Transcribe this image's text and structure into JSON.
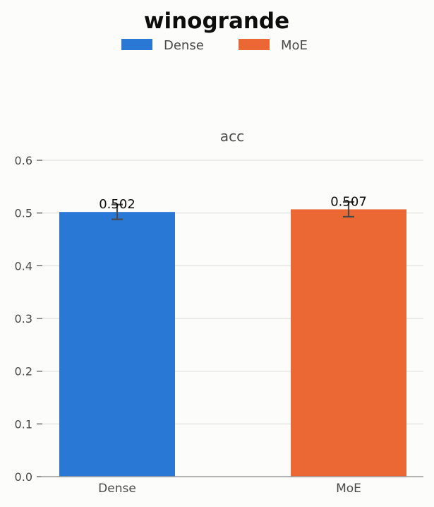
{
  "chart_data": {
    "type": "bar",
    "title": "winogrande",
    "subtitle": "acc",
    "categories": [
      "Dense",
      "MoE"
    ],
    "series": [
      {
        "name": "Dense",
        "value": 0.502,
        "error": 0.014,
        "color": "#2a78d6"
      },
      {
        "name": "MoE",
        "value": 0.507,
        "error": 0.014,
        "color": "#eb6834"
      }
    ],
    "value_labels": [
      "0.502",
      "0.507"
    ],
    "ylim": [
      0,
      0.6
    ],
    "yticks": [
      "0.0",
      "0.1",
      "0.2",
      "0.3",
      "0.4",
      "0.5",
      "0.6"
    ],
    "legend": {
      "position": "top-center",
      "entries": [
        "Dense",
        "MoE"
      ]
    },
    "grid": true,
    "colors": {
      "background": "#fcfcfa",
      "grid": "#dedede",
      "axis": "#9a9a9a",
      "errorbar": "#4a4a4a"
    }
  }
}
